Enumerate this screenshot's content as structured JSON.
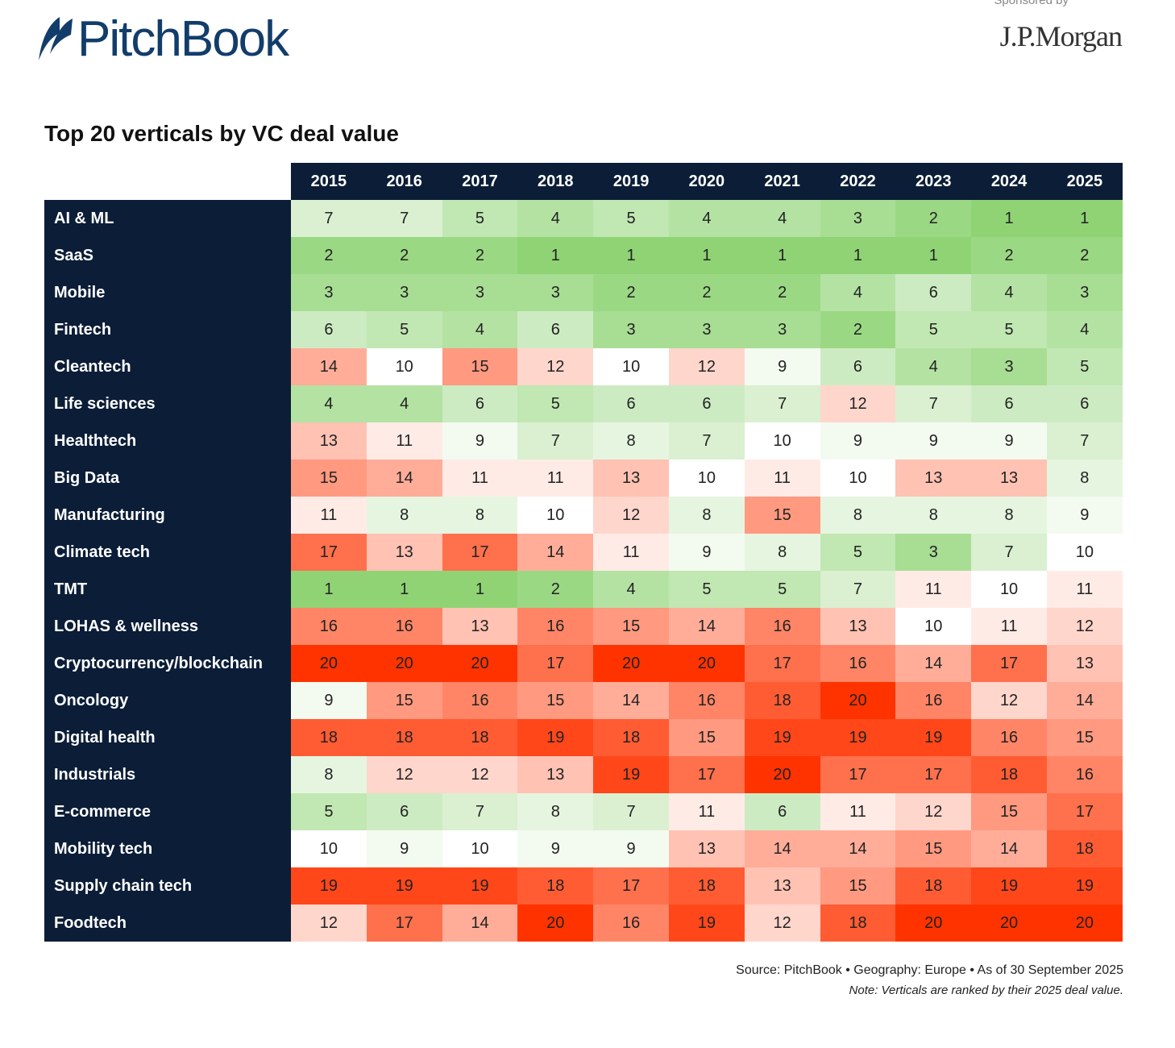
{
  "brand": {
    "logo": "PitchBook",
    "sponsor_label": "Sponsored by",
    "sponsor": "J.P.Morgan"
  },
  "chart_data": {
    "type": "heatmap",
    "title": "Top 20 verticals by VC deal value",
    "x": [
      "2015",
      "2016",
      "2017",
      "2018",
      "2019",
      "2020",
      "2021",
      "2022",
      "2023",
      "2024",
      "2025"
    ],
    "y": [
      "AI & ML",
      "SaaS",
      "Mobile",
      "Fintech",
      "Cleantech",
      "Life sciences",
      "Healthtech",
      "Big Data",
      "Manufacturing",
      "Climate tech",
      "TMT",
      "LOHAS & wellness",
      "Cryptocurrency/blockchain",
      "Oncology",
      "Digital health",
      "Industrials",
      "E-commerce",
      "Mobility tech",
      "Supply chain tech",
      "Foodtech"
    ],
    "values": [
      [
        7,
        7,
        5,
        4,
        5,
        4,
        4,
        3,
        2,
        1,
        1
      ],
      [
        2,
        2,
        2,
        1,
        1,
        1,
        1,
        1,
        1,
        2,
        2
      ],
      [
        3,
        3,
        3,
        3,
        2,
        2,
        2,
        4,
        6,
        4,
        3
      ],
      [
        6,
        5,
        4,
        6,
        3,
        3,
        3,
        2,
        5,
        5,
        4
      ],
      [
        14,
        10,
        15,
        12,
        10,
        12,
        9,
        6,
        4,
        3,
        5
      ],
      [
        4,
        4,
        6,
        5,
        6,
        6,
        7,
        12,
        7,
        6,
        6
      ],
      [
        13,
        11,
        9,
        7,
        8,
        7,
        10,
        9,
        9,
        9,
        7
      ],
      [
        15,
        14,
        11,
        11,
        13,
        10,
        11,
        10,
        13,
        13,
        8
      ],
      [
        11,
        8,
        8,
        10,
        12,
        8,
        15,
        8,
        8,
        8,
        9
      ],
      [
        17,
        13,
        17,
        14,
        11,
        9,
        8,
        5,
        3,
        7,
        10
      ],
      [
        1,
        1,
        1,
        2,
        4,
        5,
        5,
        7,
        11,
        10,
        11
      ],
      [
        16,
        16,
        13,
        16,
        15,
        14,
        16,
        13,
        10,
        11,
        12
      ],
      [
        20,
        20,
        20,
        17,
        20,
        20,
        17,
        16,
        14,
        17,
        13
      ],
      [
        9,
        15,
        16,
        15,
        14,
        16,
        18,
        20,
        16,
        12,
        14
      ],
      [
        18,
        18,
        18,
        19,
        18,
        15,
        19,
        19,
        19,
        16,
        15
      ],
      [
        8,
        12,
        12,
        13,
        19,
        17,
        20,
        17,
        17,
        18,
        16
      ],
      [
        5,
        6,
        7,
        8,
        7,
        11,
        6,
        11,
        12,
        15,
        17
      ],
      [
        10,
        9,
        10,
        9,
        9,
        13,
        14,
        14,
        15,
        14,
        18
      ],
      [
        19,
        19,
        19,
        18,
        17,
        18,
        13,
        15,
        18,
        19,
        19
      ],
      [
        12,
        17,
        14,
        20,
        16,
        19,
        12,
        18,
        20,
        20,
        20
      ]
    ],
    "color_scale": {
      "low": "#8fd375",
      "mid": "#ffffff",
      "high": "#ff3300"
    },
    "source": "Source: PitchBook  •  Geography: Europe  •  As of 30 September 2025",
    "note": "Note: Verticals are ranked by their 2025 deal value."
  }
}
